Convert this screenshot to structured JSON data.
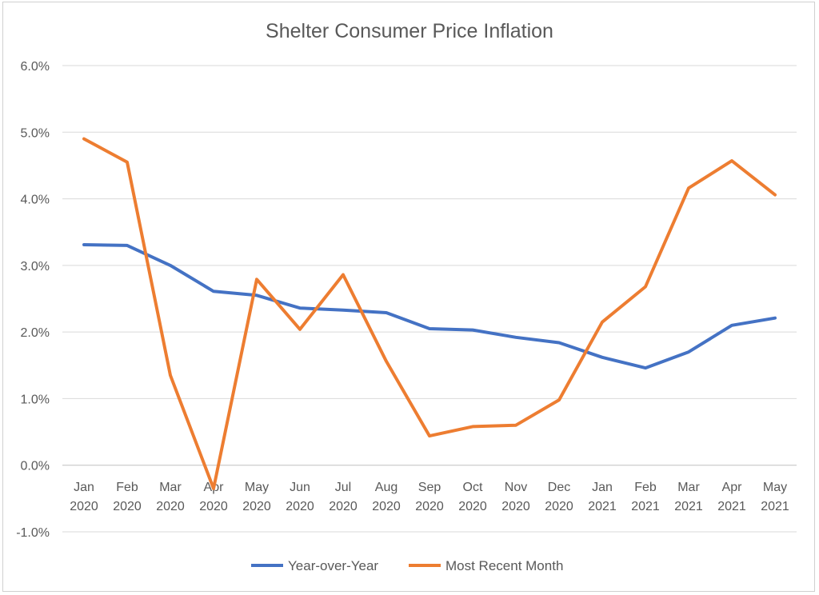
{
  "chart_data": {
    "type": "line",
    "title": "Shelter Consumer Price Inflation",
    "categories": [
      [
        "Jan",
        "2020"
      ],
      [
        "Feb",
        "2020"
      ],
      [
        "Mar",
        "2020"
      ],
      [
        "Apr",
        "2020"
      ],
      [
        "May",
        "2020"
      ],
      [
        "Jun",
        "2020"
      ],
      [
        "Jul",
        "2020"
      ],
      [
        "Aug",
        "2020"
      ],
      [
        "Sep",
        "2020"
      ],
      [
        "Oct",
        "2020"
      ],
      [
        "Nov",
        "2020"
      ],
      [
        "Dec",
        "2020"
      ],
      [
        "Jan",
        "2021"
      ],
      [
        "Feb",
        "2021"
      ],
      [
        "Mar",
        "2021"
      ],
      [
        "Apr",
        "2021"
      ],
      [
        "May",
        "2021"
      ]
    ],
    "y_ticks": [
      "6.0%",
      "5.0%",
      "4.0%",
      "3.0%",
      "2.0%",
      "1.0%",
      "0.0%",
      "-1.0%"
    ],
    "y_tick_values": [
      6,
      5,
      4,
      3,
      2,
      1,
      0,
      -1
    ],
    "ylim": [
      -1,
      6
    ],
    "grid": true,
    "legend_position": "bottom",
    "series": [
      {
        "name": "Year-over-Year",
        "color": "#4472c4",
        "values": [
          3.31,
          3.3,
          3.0,
          2.61,
          2.55,
          2.36,
          2.33,
          2.29,
          2.05,
          2.03,
          1.92,
          1.84,
          1.62,
          1.46,
          1.7,
          2.1,
          2.21
        ]
      },
      {
        "name": "Most Recent Month",
        "color": "#ed7d31",
        "values": [
          4.9,
          4.55,
          1.35,
          -0.35,
          2.79,
          2.04,
          2.86,
          1.56,
          0.44,
          0.58,
          0.6,
          0.98,
          2.15,
          2.68,
          4.16,
          4.57,
          4.06
        ]
      }
    ]
  }
}
